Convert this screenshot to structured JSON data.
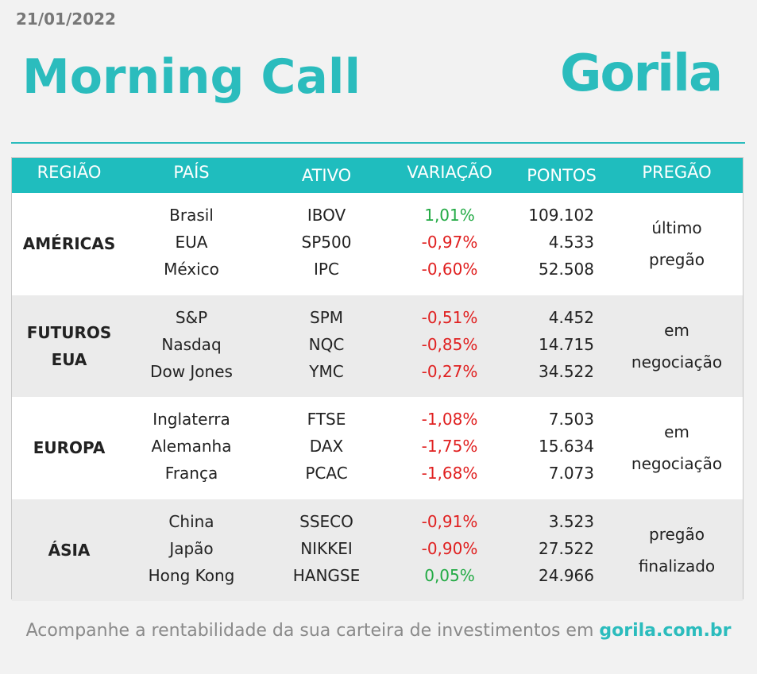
{
  "header": {
    "date": "21/01/2022",
    "title": "Morning Call",
    "logo": "Gorila"
  },
  "table": {
    "headers": [
      "REGIÃO",
      "PAÍS",
      "ATIVO",
      "VARIAÇÃO",
      "PONTOS",
      "PREGÃO"
    ],
    "groups": [
      {
        "region": [
          "AMÉRICAS"
        ],
        "session": [
          "último",
          "pregão"
        ],
        "rows": [
          [
            "Brasil",
            "IBOV",
            "1,01%",
            "109.102"
          ],
          [
            "EUA",
            "SP500",
            "-0,97%",
            "4.533"
          ],
          [
            "México",
            "IPC",
            "-0,60%",
            "52.508"
          ]
        ]
      },
      {
        "region": [
          "FUTUROS",
          "EUA"
        ],
        "session": [
          "em",
          "negociação"
        ],
        "rows": [
          [
            "S&P",
            "SPM",
            "-0,51%",
            "4.452"
          ],
          [
            "Nasdaq",
            "NQC",
            "-0,85%",
            "14.715"
          ],
          [
            "Dow Jones",
            "YMC",
            "-0,27%",
            "34.522"
          ]
        ]
      },
      {
        "region": [
          "EUROPA"
        ],
        "session": [
          "em",
          "negociação"
        ],
        "rows": [
          [
            "Inglaterra",
            "FTSE",
            "-1,08%",
            "7.503"
          ],
          [
            "Alemanha",
            "DAX",
            "-1,75%",
            "15.634"
          ],
          [
            "França",
            "PCAC",
            "-1,68%",
            "7.073"
          ]
        ]
      },
      {
        "region": [
          "ÁSIA"
        ],
        "session": [
          "pregão",
          "finalizado"
        ],
        "rows": [
          [
            "China",
            "SSECO",
            "-0,91%",
            "3.523"
          ],
          [
            "Japão",
            "NIKKEI",
            "-0,90%",
            "27.522"
          ],
          [
            "Hong Kong",
            "HANGSE",
            "0,05%",
            "24.966"
          ]
        ]
      }
    ]
  },
  "footer": {
    "text": "Acompanhe a rentabilidade da sua carteira de investimentos em",
    "link": "gorila.com.br"
  }
}
